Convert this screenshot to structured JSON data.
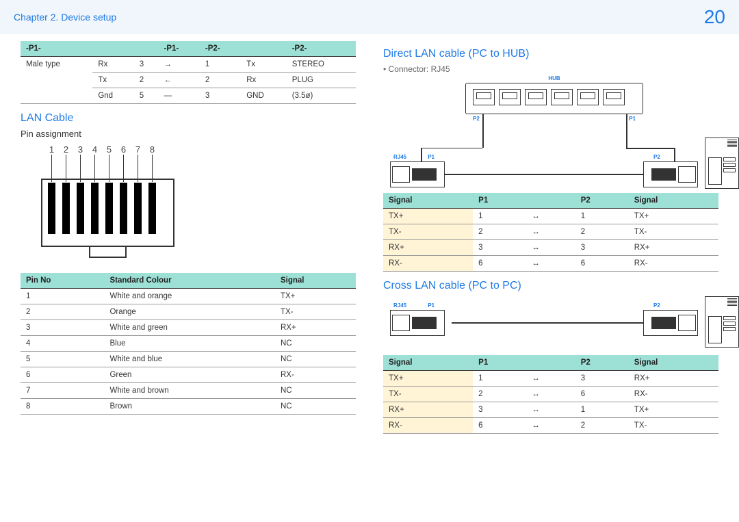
{
  "header": {
    "chapter": "Chapter 2. Device setup",
    "page": "20"
  },
  "stereo_table": {
    "headers": [
      "-P1-",
      "",
      "",
      "-P1-",
      "-P2-",
      "",
      "-P2-"
    ],
    "rowspan_label": "Male type",
    "rows": [
      [
        "Rx",
        "3",
        "→",
        "1",
        "Tx",
        "STEREO"
      ],
      [
        "Tx",
        "2",
        "←",
        "2",
        "Rx",
        "PLUG"
      ],
      [
        "Gnd",
        "5",
        "—",
        "3",
        "GND",
        "(3.5ø)"
      ]
    ]
  },
  "lan_section": {
    "title": "LAN Cable",
    "sub": "Pin assignment"
  },
  "pin_numbers": [
    "1",
    "2",
    "3",
    "4",
    "5",
    "6",
    "7",
    "8"
  ],
  "pin_table": {
    "headers": [
      "Pin No",
      "Standard Colour",
      "Signal"
    ],
    "rows": [
      [
        "1",
        "White and orange",
        "TX+"
      ],
      [
        "2",
        "Orange",
        "TX-"
      ],
      [
        "3",
        "White and green",
        "RX+"
      ],
      [
        "4",
        "Blue",
        "NC"
      ],
      [
        "5",
        "White and blue",
        "NC"
      ],
      [
        "6",
        "Green",
        "RX-"
      ],
      [
        "7",
        "White and brown",
        "NC"
      ],
      [
        "8",
        "Brown",
        "NC"
      ]
    ]
  },
  "direct_section": {
    "title": "Direct LAN cable (PC to HUB)",
    "bullet": "Connector: RJ45"
  },
  "direct_table": {
    "headers": [
      "Signal",
      "P1",
      "",
      "P2",
      "Signal"
    ],
    "rows": [
      [
        "TX+",
        "1",
        "↔",
        "1",
        "TX+"
      ],
      [
        "TX-",
        "2",
        "↔",
        "2",
        "TX-"
      ],
      [
        "RX+",
        "3",
        "↔",
        "3",
        "RX+"
      ],
      [
        "RX-",
        "6",
        "↔",
        "6",
        "RX-"
      ]
    ]
  },
  "cross_section": {
    "title": "Cross LAN cable (PC to PC)"
  },
  "cross_table": {
    "headers": [
      "Signal",
      "P1",
      "",
      "P2",
      "Signal"
    ],
    "rows": [
      [
        "TX+",
        "1",
        "↔",
        "3",
        "RX+"
      ],
      [
        "TX-",
        "2",
        "↔",
        "6",
        "RX-"
      ],
      [
        "RX+",
        "3",
        "↔",
        "1",
        "TX+"
      ],
      [
        "RX-",
        "6",
        "↔",
        "2",
        "TX-"
      ]
    ]
  },
  "diagram_labels": {
    "hub": "HUB",
    "rj45": "RJ45",
    "p1": "P1",
    "p2": "P2"
  }
}
